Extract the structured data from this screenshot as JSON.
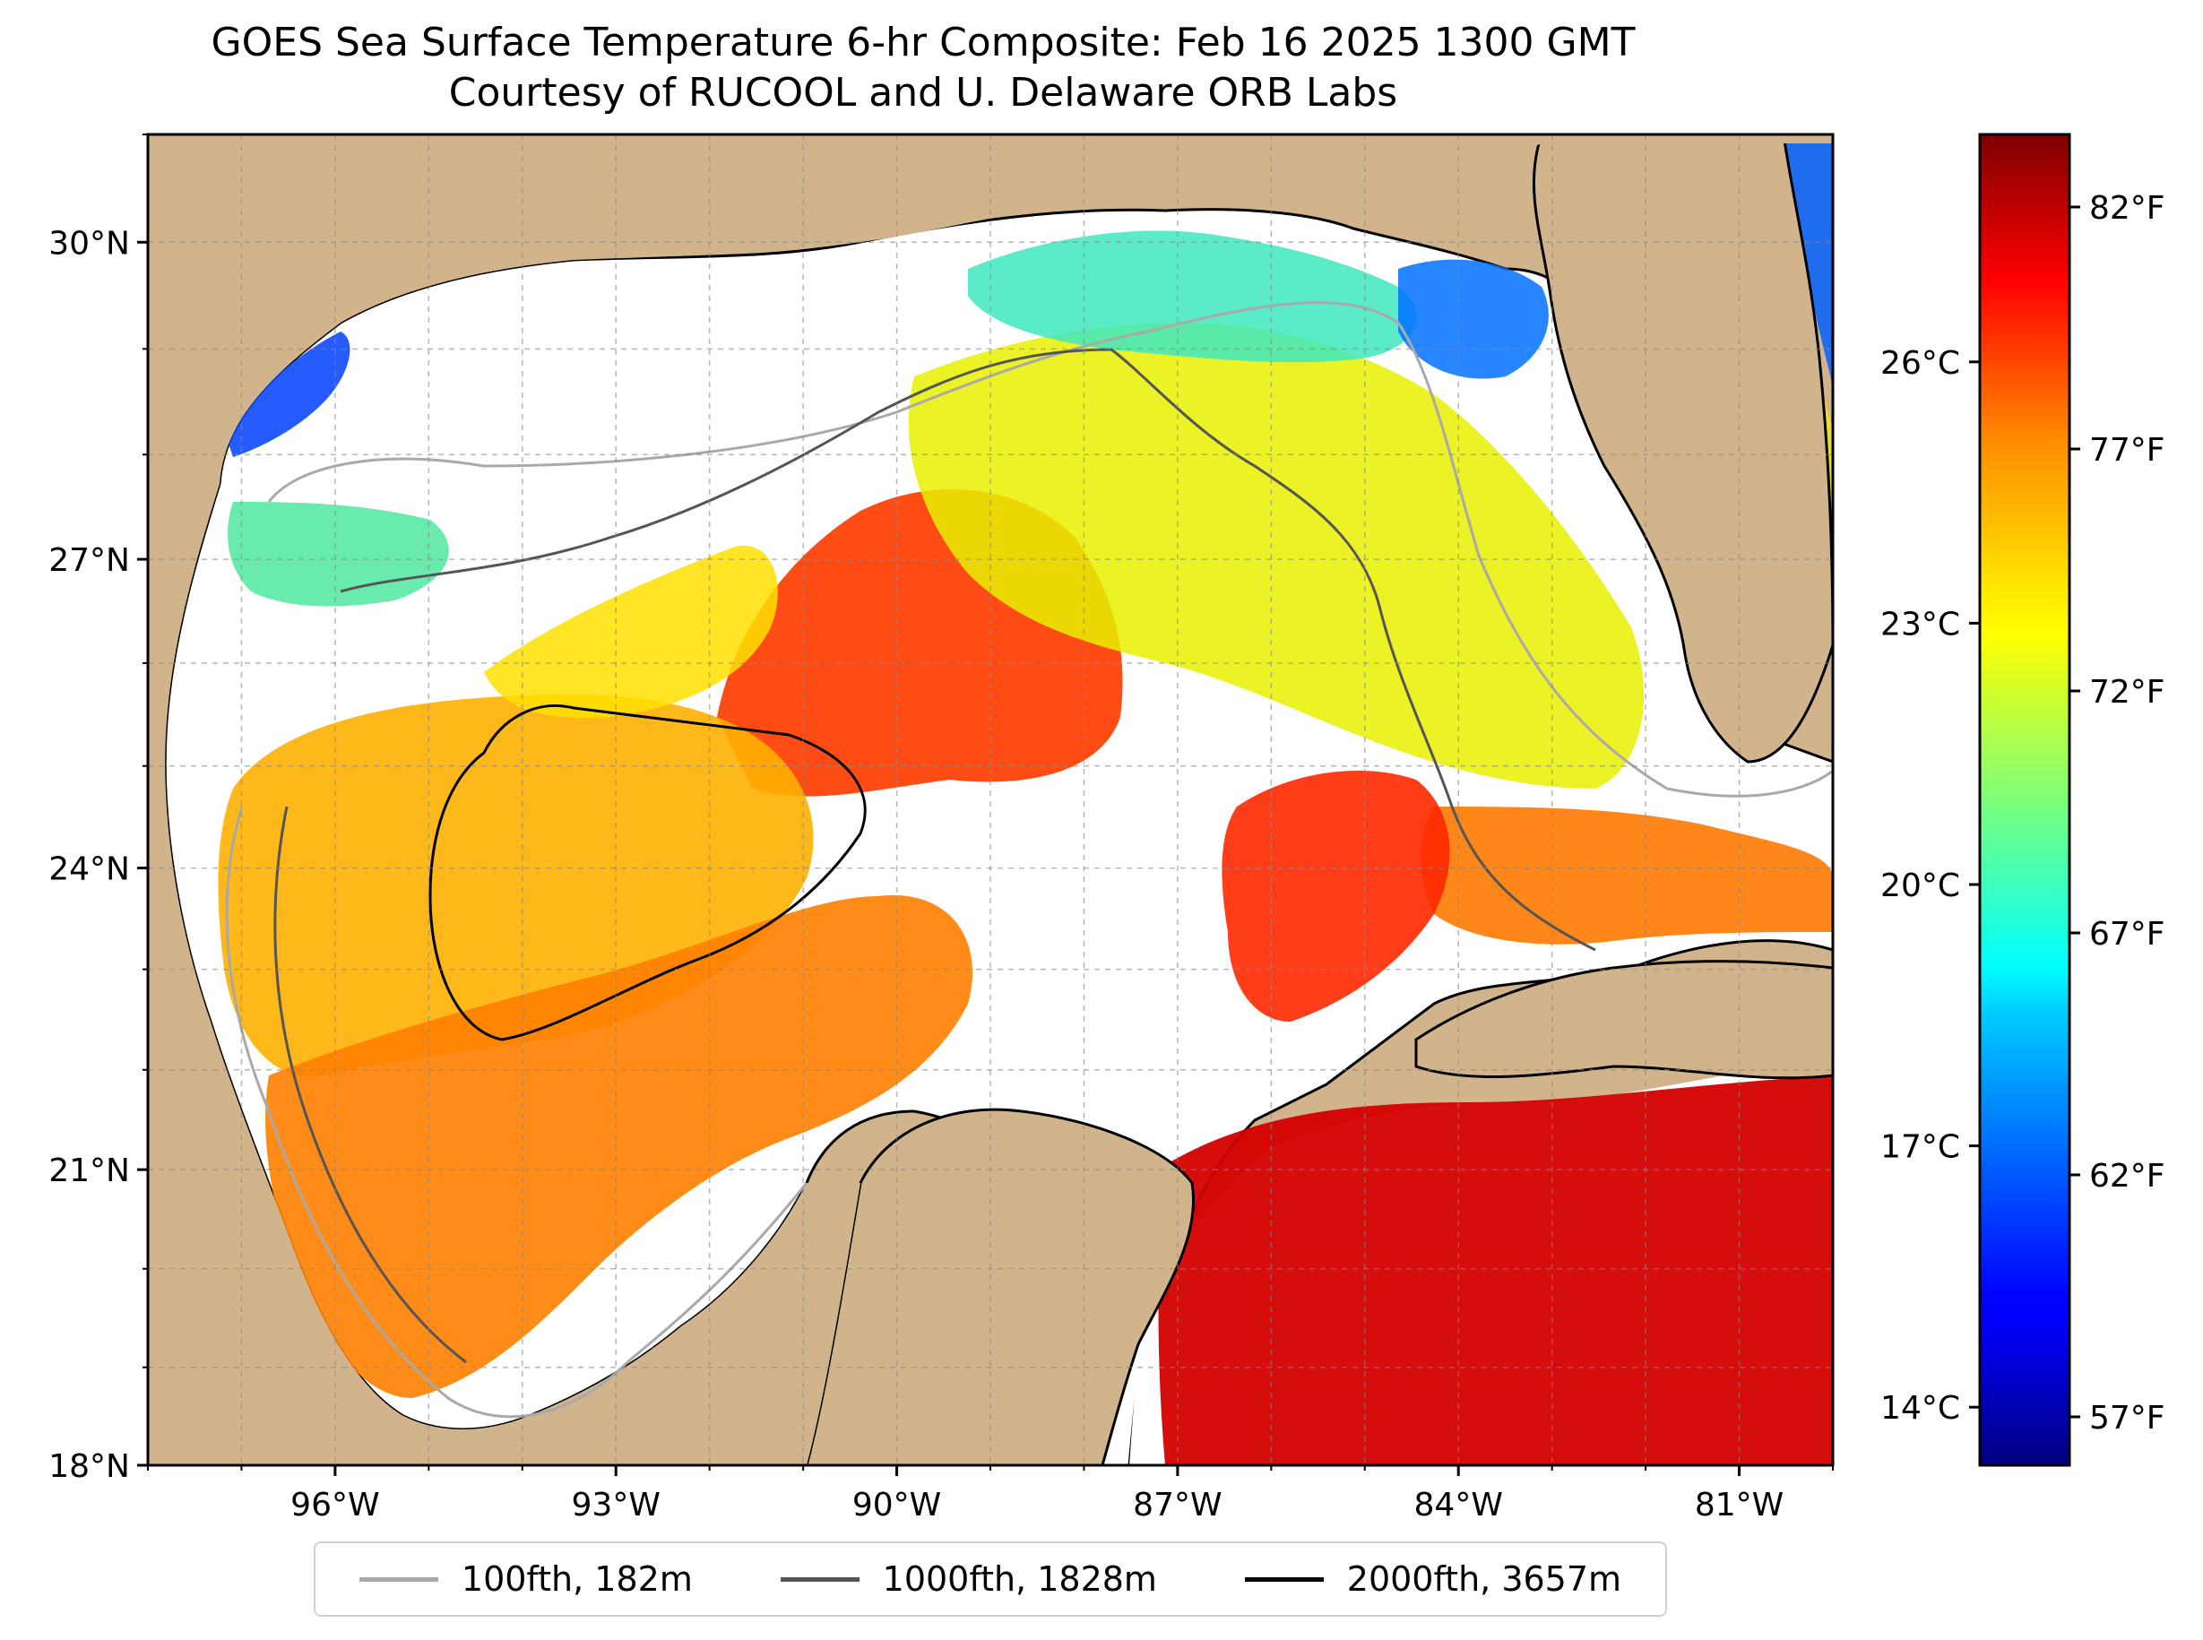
{
  "title": {
    "line1": "GOES Sea Surface Temperature 6-hr Composite: Feb 16 2025 1300 GMT",
    "line2": "Courtesy of RUCOOL and U. Delaware ORB Labs"
  },
  "map": {
    "lon_range": [
      -98,
      -80
    ],
    "lat_range": [
      18,
      31
    ],
    "lat_ticks": [
      {
        "value": 30,
        "label": "30°N"
      },
      {
        "value": 27,
        "label": "27°N"
      },
      {
        "value": 24,
        "label": "24°N"
      },
      {
        "value": 21,
        "label": "21°N"
      },
      {
        "value": 18,
        "label": "18°N"
      }
    ],
    "lon_ticks": [
      {
        "value": -96,
        "label": "96°W"
      },
      {
        "value": -93,
        "label": "93°W"
      },
      {
        "value": -90,
        "label": "90°W"
      },
      {
        "value": -87,
        "label": "87°W"
      },
      {
        "value": -84,
        "label": "84°W"
      },
      {
        "value": -81,
        "label": "81°W"
      }
    ],
    "gridlines": true,
    "land_color": "#d2b48c",
    "nodata_color": "#ffffff",
    "water_bodies_color": "#a0b8e0"
  },
  "colorbar": {
    "colormap": "jet",
    "celsius_ticks": [
      {
        "value": 14,
        "label": "14°C"
      },
      {
        "value": 17,
        "label": "17°C"
      },
      {
        "value": 20,
        "label": "20°C"
      },
      {
        "value": 23,
        "label": "23°C"
      },
      {
        "value": 26,
        "label": "26°C"
      }
    ],
    "fahrenheit_ticks": [
      {
        "value": 57,
        "label": "57°F"
      },
      {
        "value": 62,
        "label": "62°F"
      },
      {
        "value": 67,
        "label": "67°F"
      },
      {
        "value": 72,
        "label": "72°F"
      },
      {
        "value": 77,
        "label": "77°F"
      },
      {
        "value": 82,
        "label": "82°F"
      }
    ]
  },
  "legend": [
    {
      "label": "100fth, 182m",
      "color": "#a9a9a9"
    },
    {
      "label": "1000fth, 1828m",
      "color": "#555555"
    },
    {
      "label": "2000fth, 3657m",
      "color": "#000000"
    }
  ]
}
